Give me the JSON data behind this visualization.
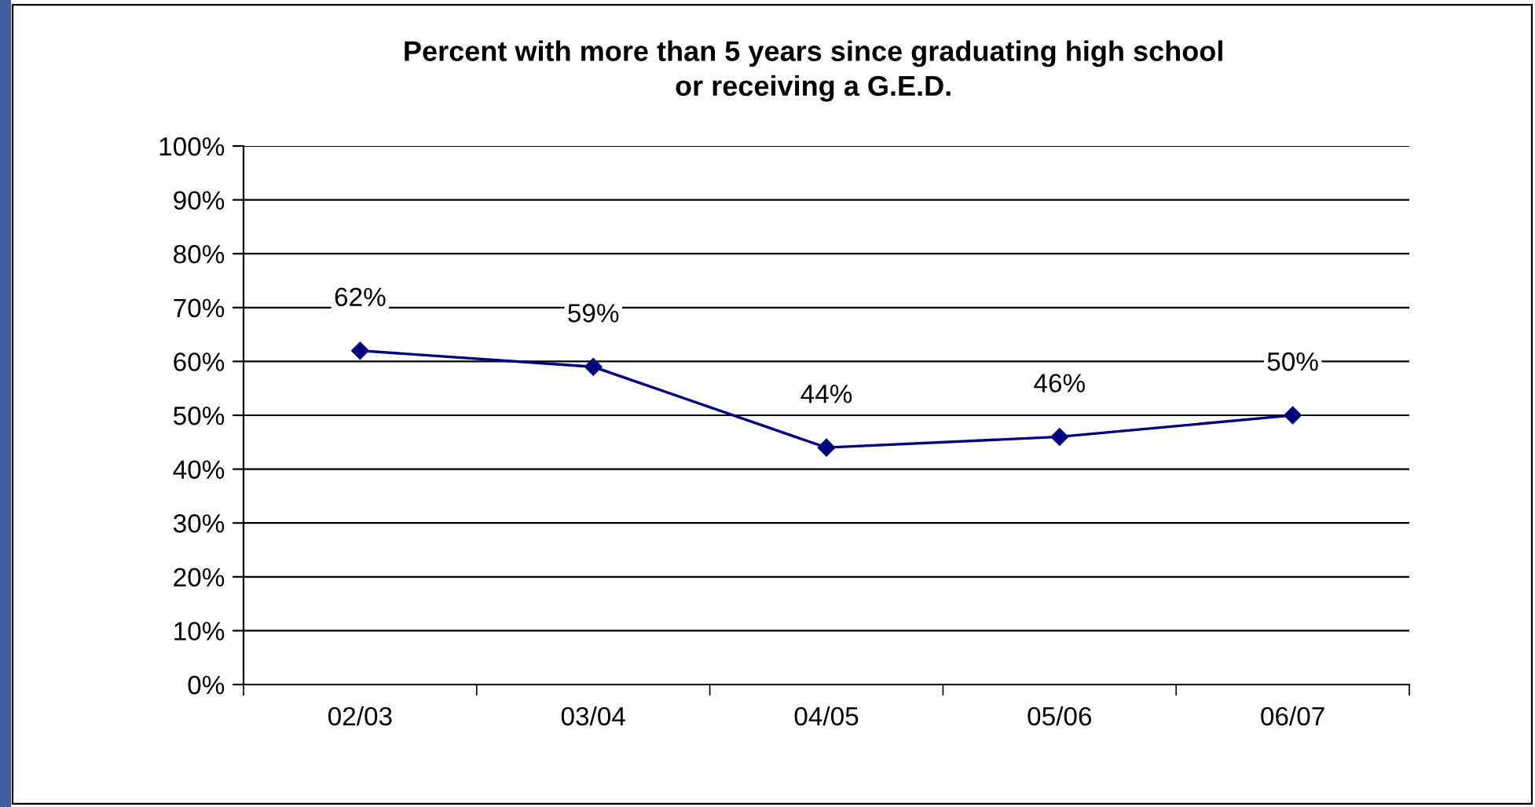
{
  "chart_data": {
    "type": "line",
    "title": "Percent with more than 5 years since graduating high school\nor receiving a G.E.D.",
    "categories": [
      "02/03",
      "03/04",
      "04/05",
      "05/06",
      "06/07"
    ],
    "series": [
      {
        "color": "#000080",
        "values": [
          62,
          59,
          44,
          46,
          50
        ],
        "value_labels": [
          "62%",
          "59%",
          "44%",
          "46%",
          "50%"
        ]
      }
    ],
    "ylim": [
      0,
      100
    ],
    "yticks": [
      {
        "value": 0,
        "label": "0%"
      },
      {
        "value": 10,
        "label": "10%"
      },
      {
        "value": 20,
        "label": "20%"
      },
      {
        "value": 30,
        "label": "30%"
      },
      {
        "value": 40,
        "label": "40%"
      },
      {
        "value": 50,
        "label": "50%"
      },
      {
        "value": 60,
        "label": "60%"
      },
      {
        "value": 70,
        "label": "70%"
      },
      {
        "value": 80,
        "label": "80%"
      },
      {
        "value": 90,
        "label": "90%"
      },
      {
        "value": 100,
        "label": "100%"
      }
    ],
    "grid": "y",
    "marker": "diamond",
    "line_style": "solid",
    "legend": false
  }
}
